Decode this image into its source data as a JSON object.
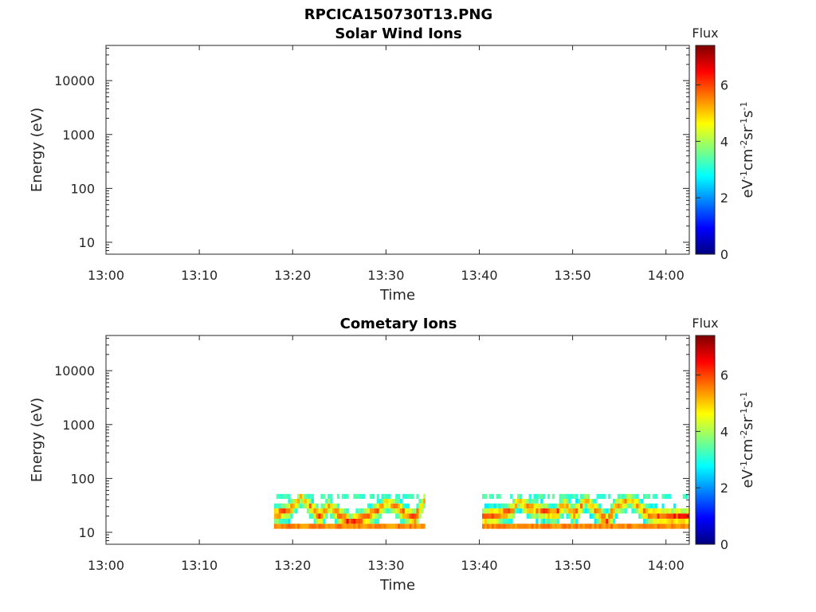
{
  "figure_title": "RPCICA150730T13.PNG",
  "chart_data": [
    {
      "type": "heatmap",
      "title": "Solar Wind Ions",
      "xlabel": "Time",
      "ylabel": "Energy (eV)",
      "x_ticks": [
        "13:00",
        "13:10",
        "13:20",
        "13:30",
        "13:40",
        "13:50",
        "14:00"
      ],
      "xlim_minutes": [
        0,
        62.5
      ],
      "y_scale": "log",
      "y_ticks": [
        "10",
        "100",
        "1000",
        "10000"
      ],
      "ylim": [
        6,
        45000
      ],
      "colorbar": {
        "title": "Flux",
        "label": "eV-1cm-2sr-1s-1",
        "ticks": [
          "0",
          "2",
          "4",
          "6"
        ],
        "range": [
          0,
          7.4
        ],
        "colormap": "jet"
      },
      "segments": []
    },
    {
      "type": "heatmap",
      "title": "Cometary Ions",
      "xlabel": "Time",
      "ylabel": "Energy (eV)",
      "x_ticks": [
        "13:00",
        "13:10",
        "13:20",
        "13:30",
        "13:40",
        "13:50",
        "14:00"
      ],
      "xlim_minutes": [
        0,
        62.5
      ],
      "y_scale": "log",
      "y_ticks": [
        "10",
        "100",
        "1000",
        "10000"
      ],
      "ylim": [
        6,
        45000
      ],
      "colorbar": {
        "title": "Flux",
        "label": "eV-1cm-2sr-1s-1",
        "ticks": [
          "0",
          "2",
          "4",
          "6"
        ],
        "range": [
          0,
          7.4
        ],
        "colormap": "jet"
      },
      "segments": [
        {
          "start_min": 18,
          "end_min": 34.2
        },
        {
          "start_min": 40.3,
          "end_min": 62.5
        }
      ],
      "energy_bins_eV": [
        13,
        16,
        20,
        25,
        31,
        38,
        46
      ],
      "peak_flux_energy_eV": [
        {
          "t": 18,
          "e": 22
        },
        {
          "t": 19.5,
          "e": 26
        },
        {
          "t": 20.8,
          "e": 46
        },
        {
          "t": 21.8,
          "e": 30
        },
        {
          "t": 22.8,
          "e": 20
        },
        {
          "t": 23.8,
          "e": 32
        },
        {
          "t": 24.8,
          "e": 22
        },
        {
          "t": 26,
          "e": 15
        },
        {
          "t": 27.5,
          "e": 19
        },
        {
          "t": 29,
          "e": 26
        },
        {
          "t": 30,
          "e": 38
        },
        {
          "t": 31,
          "e": 30
        },
        {
          "t": 32,
          "e": 22
        },
        {
          "t": 33,
          "e": 19
        },
        {
          "t": 34,
          "e": 40
        },
        {
          "t": 40.3,
          "e": 20
        },
        {
          "t": 42,
          "e": 22
        },
        {
          "t": 43.5,
          "e": 26
        },
        {
          "t": 44,
          "e": 40
        },
        {
          "t": 45,
          "e": 30
        },
        {
          "t": 46.5,
          "e": 26
        },
        {
          "t": 48,
          "e": 22
        },
        {
          "t": 49,
          "e": 34
        },
        {
          "t": 50,
          "e": 22
        },
        {
          "t": 51.3,
          "e": 40
        },
        {
          "t": 52.5,
          "e": 25
        },
        {
          "t": 53.5,
          "e": 16
        },
        {
          "t": 54.5,
          "e": 30
        },
        {
          "t": 56,
          "e": 42
        },
        {
          "t": 58,
          "e": 22
        },
        {
          "t": 60,
          "e": 20
        },
        {
          "t": 62.5,
          "e": 20
        }
      ]
    }
  ]
}
